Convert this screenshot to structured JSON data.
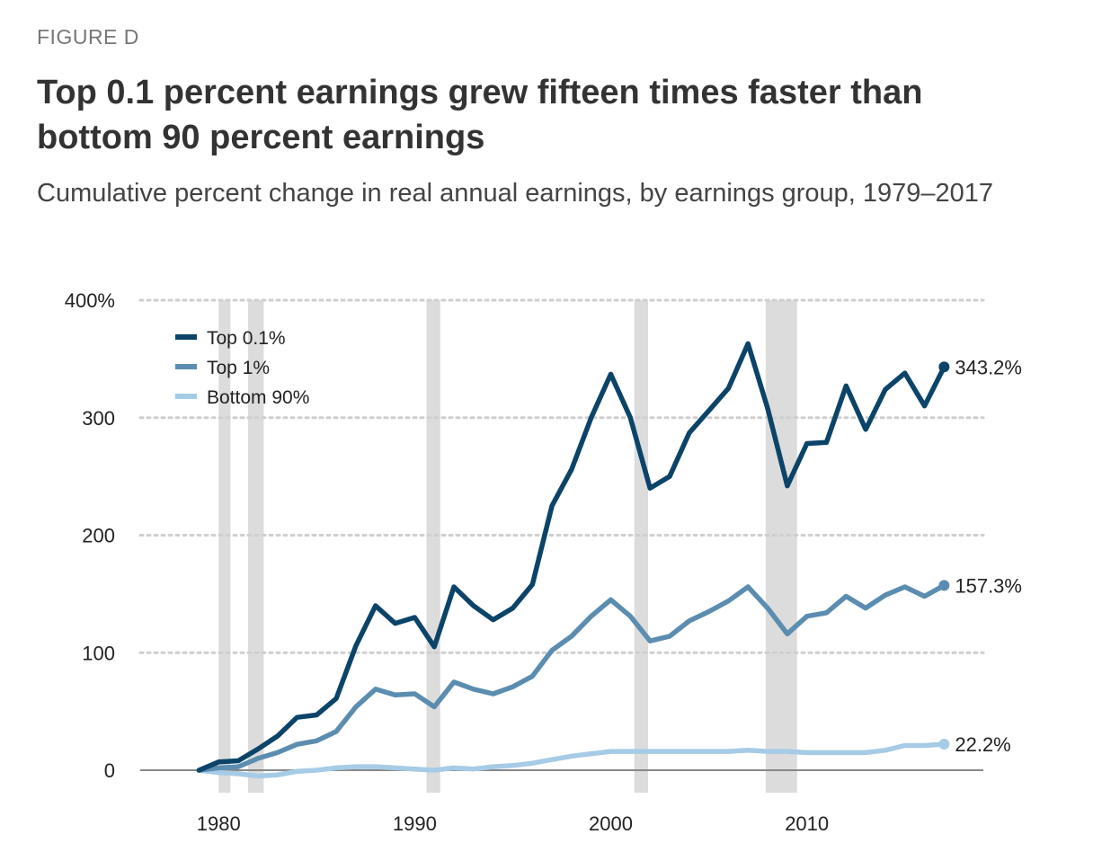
{
  "header": {
    "figure_label": "FIGURE D",
    "title": "Top 0.1 percent earnings grew fifteen times faster than bottom 90 percent earnings",
    "subtitle": "Cumulative percent change in real annual earnings, by earnings group, 1979–2017"
  },
  "chart_data": {
    "type": "line",
    "title": "Top 0.1 percent earnings grew fifteen times faster than bottom 90 percent earnings",
    "subtitle": "Cumulative percent change in real annual earnings, by earnings group, 1979–2017",
    "xlabel": "",
    "ylabel": "",
    "xlim": [
      1976,
      2019
    ],
    "ylim": [
      -20,
      400
    ],
    "x_ticks": [
      1980,
      1990,
      2000,
      2010
    ],
    "x_tick_labels": [
      "1980",
      "1990",
      "2000",
      "2010"
    ],
    "y_ticks": [
      0,
      100,
      200,
      300,
      400
    ],
    "y_tick_labels": [
      "0",
      "100",
      "200",
      "300",
      "400%"
    ],
    "grid": "horizontal dotted",
    "legend_position": "top-left",
    "recessions": [
      [
        1980.0,
        1980.6
      ],
      [
        1981.5,
        1982.3
      ],
      [
        1990.6,
        1991.3
      ],
      [
        2001.2,
        2001.9
      ],
      [
        2007.9,
        2009.5
      ]
    ],
    "x": [
      1979,
      1980,
      1981,
      1982,
      1983,
      1984,
      1985,
      1986,
      1987,
      1988,
      1989,
      1990,
      1991,
      1992,
      1993,
      1994,
      1995,
      1996,
      1997,
      1998,
      1999,
      2000,
      2001,
      2002,
      2003,
      2004,
      2005,
      2006,
      2007,
      2008,
      2009,
      2010,
      2011,
      2012,
      2013,
      2014,
      2015,
      2016,
      2017
    ],
    "series": [
      {
        "name": "Top 0.1%",
        "color": "#0b4468",
        "end_label": "343.2%",
        "values": [
          0,
          7,
          8,
          18,
          29,
          45,
          47,
          61,
          106,
          140,
          125,
          130,
          105,
          156,
          140,
          128,
          138,
          158,
          225,
          256,
          300,
          337,
          300,
          240,
          250,
          287,
          306,
          325,
          363,
          308,
          242,
          278,
          279,
          327,
          290,
          324,
          338,
          310,
          343.2
        ]
      },
      {
        "name": "Top 1%",
        "color": "#5b8db0",
        "end_label": "157.3%",
        "values": [
          0,
          2,
          3,
          10,
          15,
          22,
          25,
          33,
          54,
          69,
          64,
          65,
          54,
          75,
          69,
          65,
          71,
          80,
          102,
          114,
          131,
          145,
          131,
          110,
          114,
          127,
          135,
          144,
          156,
          138,
          116,
          131,
          134,
          148,
          138,
          149,
          156,
          148,
          157.3
        ]
      },
      {
        "name": "Bottom 90%",
        "color": "#a6cbe6",
        "end_label": "22.2%",
        "values": [
          0,
          -2,
          -3,
          -5,
          -4,
          -1,
          0,
          2,
          3,
          3,
          2,
          1,
          0,
          2,
          1,
          3,
          4,
          6,
          9,
          12,
          14,
          16,
          16,
          16,
          16,
          16,
          16,
          16,
          17,
          16,
          16,
          15,
          15,
          15,
          15,
          17,
          21,
          21,
          22.2
        ]
      }
    ]
  }
}
